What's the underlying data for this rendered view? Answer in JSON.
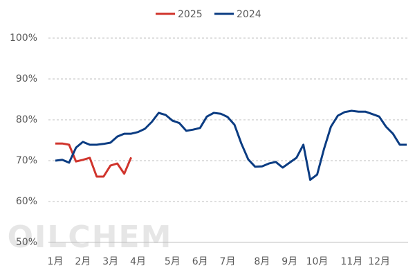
{
  "chart_data": {
    "type": "line",
    "watermark": "OILCHEM",
    "categories": [
      "1月",
      null,
      null,
      null,
      "2月",
      null,
      null,
      null,
      "3月",
      null,
      null,
      null,
      "4月",
      null,
      null,
      null,
      null,
      "5月",
      null,
      null,
      null,
      "6月",
      null,
      null,
      null,
      "7月",
      null,
      null,
      null,
      null,
      "8月",
      null,
      null,
      null,
      "9月",
      null,
      null,
      null,
      "10月",
      null,
      null,
      null,
      null,
      "11月",
      null,
      null,
      null,
      "12月",
      null,
      null,
      null,
      null
    ],
    "series": [
      {
        "name": "2025",
        "color": "#d0342c",
        "values": [
          74.2,
          74.2,
          73.9,
          69.8,
          70.2,
          70.7,
          66.1,
          66.1,
          68.8,
          69.3,
          66.8,
          70.8,
          null,
          null,
          null,
          null,
          null,
          null,
          null,
          null,
          null,
          null,
          null,
          null,
          null,
          null,
          null,
          null,
          null,
          null,
          null,
          null,
          null,
          null,
          null,
          null,
          null,
          null,
          null,
          null,
          null,
          null,
          null,
          null,
          null,
          null,
          null,
          null,
          null,
          null,
          null,
          null
        ]
      },
      {
        "name": "2024",
        "color": "#0b3c82",
        "values": [
          70.0,
          70.2,
          69.5,
          73.2,
          74.6,
          73.9,
          73.9,
          74.1,
          74.4,
          75.9,
          76.6,
          76.6,
          77.0,
          77.8,
          79.5,
          81.7,
          81.2,
          79.8,
          79.2,
          77.3,
          77.6,
          78.0,
          80.8,
          81.7,
          81.5,
          80.7,
          78.8,
          74.2,
          70.3,
          68.5,
          68.6,
          69.3,
          69.7,
          68.3,
          69.5,
          70.7,
          73.9,
          65.3,
          66.6,
          72.9,
          78.3,
          81.0,
          81.9,
          82.2,
          82.0,
          82.0,
          81.4,
          80.8,
          78.3,
          76.6,
          73.9,
          73.9
        ]
      }
    ],
    "ylim": [
      50,
      100
    ],
    "yticks": [
      {
        "value": 50,
        "label": "50%"
      },
      {
        "value": 60,
        "label": "60%"
      },
      {
        "value": 70,
        "label": "70%"
      },
      {
        "value": 80,
        "label": "80%"
      },
      {
        "value": 90,
        "label": "90%"
      },
      {
        "value": 100,
        "label": "100%"
      }
    ],
    "grid": true,
    "legend": "top"
  }
}
